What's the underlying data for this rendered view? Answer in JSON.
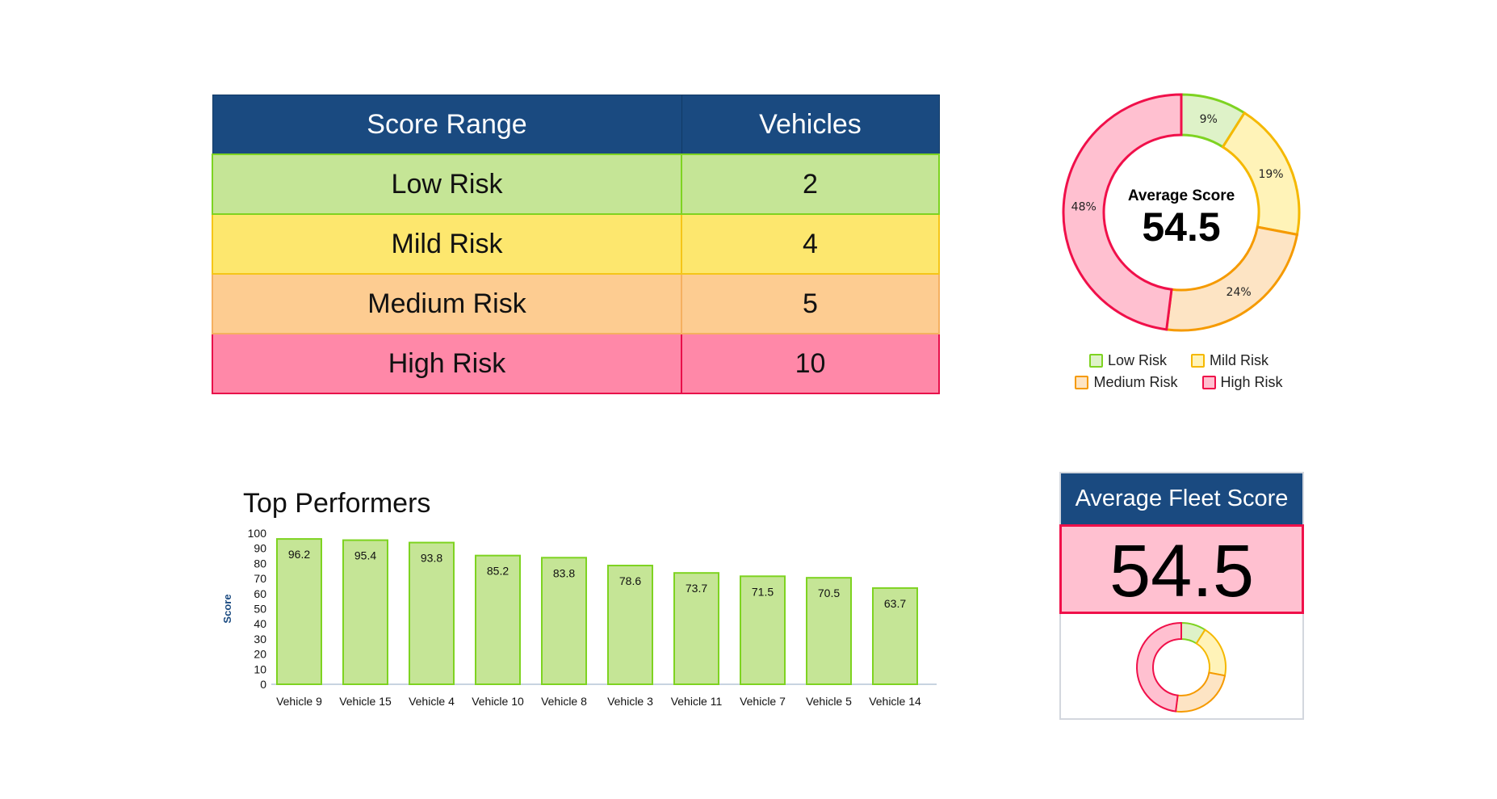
{
  "table": {
    "headers": [
      "Score Range",
      "Vehicles"
    ],
    "rows": [
      {
        "range": "Low Risk",
        "vehicles": "2",
        "bg": "#c5e596",
        "border": "#7ed321"
      },
      {
        "range": "Mild Risk",
        "vehicles": "4",
        "bg": "#fde76e",
        "border": "#f5c518"
      },
      {
        "range": "Medium Risk",
        "vehicles": "5",
        "bg": "#fdcc91",
        "border": "#f5b060"
      },
      {
        "range": "High Risk",
        "vehicles": "10",
        "bg": "#ff88a8",
        "border": "#e8104a"
      }
    ]
  },
  "chart_data": [
    {
      "type": "pie",
      "variant": "donut",
      "center_label": "Average Score",
      "center_value": "54.5",
      "categories": [
        "Low Risk",
        "Mild Risk",
        "Medium Risk",
        "High Risk"
      ],
      "values": [
        9,
        19,
        24,
        48
      ],
      "labels": [
        "9%",
        "19%",
        "24%",
        "48%"
      ],
      "fills": [
        "#def2c8",
        "#fff3b8",
        "#fde4c4",
        "#ffc0d0"
      ],
      "strokes": [
        "#7ed321",
        "#f5b800",
        "#f59a00",
        "#f0104a"
      ],
      "legend": "bottom"
    },
    {
      "type": "bar",
      "title": "Top Performers",
      "ylabel": "Score",
      "xlabel": "",
      "ylim": [
        0,
        100
      ],
      "yticks": [
        0,
        10,
        20,
        30,
        40,
        50,
        60,
        70,
        80,
        90,
        100
      ],
      "categories": [
        "Vehicle 9",
        "Vehicle 15",
        "Vehicle 4",
        "Vehicle 10",
        "Vehicle 8",
        "Vehicle 3",
        "Vehicle 11",
        "Vehicle 7",
        "Vehicle 5",
        "Vehicle 14"
      ],
      "values": [
        96.2,
        95.4,
        93.8,
        85.2,
        83.8,
        78.6,
        73.7,
        71.5,
        70.5,
        63.7
      ],
      "bar_color": "#c5e596",
      "bar_border": "#7ed321",
      "grid": false
    }
  ],
  "fleet_card": {
    "title": "Average Fleet Score",
    "value": "54.5"
  }
}
